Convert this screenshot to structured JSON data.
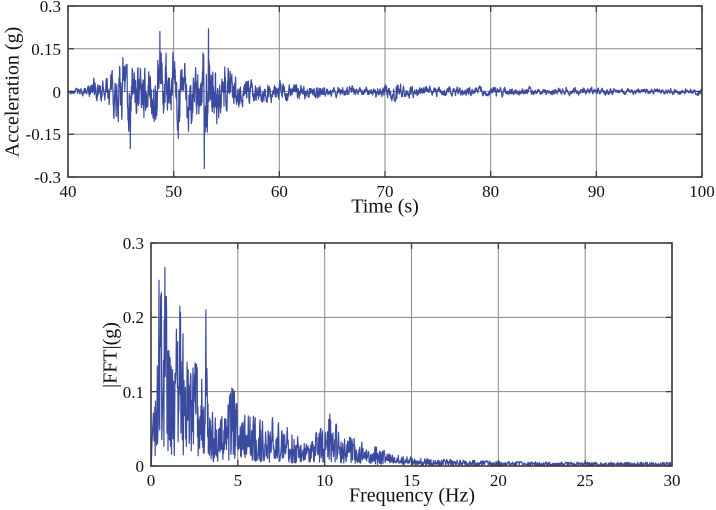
{
  "page": {
    "background_color": "#ffffff",
    "text_color": "#111111"
  },
  "chart_data": [
    {
      "id": "acceleration-time-history",
      "type": "line",
      "title": "",
      "xlabel": "Time (s)",
      "ylabel": "Acceleration (g)",
      "xlim": [
        40,
        100
      ],
      "ylim": [
        -0.3,
        0.3
      ],
      "xticks": [
        40,
        50,
        60,
        70,
        80,
        90,
        100
      ],
      "xtick_labels": [
        "40",
        "50",
        "60",
        "70",
        "80",
        "90",
        "100"
      ],
      "yticks": [
        0.3,
        0.15,
        0,
        -0.15,
        -0.3
      ],
      "ytick_labels": [
        "0.3",
        "0.15",
        "0",
        "-0.15",
        "-0.3"
      ],
      "grid": true,
      "legend": "none",
      "line_color": "#3a4a9f",
      "grid_color": "#8a8a8a",
      "axis_color": "#3a3a3a",
      "series": [
        {
          "name": "acceleration",
          "kind": "stochastic-waveform",
          "units": "g",
          "sample_step": 0.02,
          "envelope_keypoints": {
            "t": [
              40,
              41.5,
              42.5,
              43.5,
              44.5,
              45.5,
              46.2,
              47,
              48,
              48.8,
              49.5,
              50.3,
              51,
              51.8,
              52.5,
              53.0,
              53.5,
              54.2,
              55,
              56,
              57,
              58,
              59,
              60,
              61,
              62,
              64,
              66,
              68,
              70,
              71,
              71.8,
              73,
              75,
              78,
              80,
              85,
              90,
              95,
              100
            ],
            "amp": [
              0.008,
              0.02,
              0.055,
              0.06,
              0.1,
              0.17,
              0.13,
              0.12,
              0.14,
              0.21,
              0.13,
              0.16,
              0.12,
              0.18,
              0.14,
              0.26,
              0.22,
              0.12,
              0.14,
              0.07,
              0.06,
              0.05,
              0.04,
              0.045,
              0.035,
              0.03,
              0.03,
              0.025,
              0.02,
              0.025,
              0.045,
              0.025,
              0.022,
              0.02,
              0.018,
              0.02,
              0.015,
              0.015,
              0.012,
              0.012
            ]
          },
          "notable_peaks": [
            {
              "t": 45.9,
              "value": -0.2
            },
            {
              "t": 48.7,
              "value": 0.21
            },
            {
              "t": 52.9,
              "value": -0.27
            },
            {
              "t": 53.3,
              "value": 0.22
            }
          ],
          "dominant_band_hz": [
            0.5,
            5
          ]
        }
      ]
    },
    {
      "id": "fft-spectrum",
      "type": "line",
      "title": "",
      "xlabel": "Frequency (Hz)",
      "ylabel": "|FFT|(g)",
      "xlim": [
        0,
        30
      ],
      "ylim": [
        0,
        0.3
      ],
      "xticks": [
        0,
        5,
        10,
        15,
        20,
        25,
        30
      ],
      "xtick_labels": [
        "0",
        "5",
        "10",
        "15",
        "20",
        "25",
        "30"
      ],
      "yticks": [
        0.3,
        0.2,
        0.1,
        0
      ],
      "ytick_labels": [
        "0.3",
        "0.2",
        "0.1",
        "0"
      ],
      "grid": true,
      "legend": "none",
      "line_color": "#3a4a9f",
      "grid_color": "#8a8a8a",
      "axis_color": "#3a3a3a",
      "series": [
        {
          "name": "fft-magnitude",
          "kind": "spectrum",
          "units": "g",
          "sample_step": 0.02,
          "envelope_keypoints": {
            "f": [
              0,
              0.2,
              0.35,
              0.5,
              0.65,
              0.8,
              1.0,
              1.15,
              1.3,
              1.5,
              1.65,
              1.8,
              2.0,
              2.15,
              2.3,
              2.5,
              2.7,
              2.9,
              3.05,
              3.15,
              3.3,
              3.6,
              4.0,
              4.3,
              4.65,
              5.0,
              5.4,
              6.0,
              6.5,
              7.0,
              7.5,
              8.0,
              8.5,
              9.0,
              9.5,
              10.0,
              10.3,
              10.7,
              11.2,
              12.0,
              12.5,
              13.0,
              13.5,
              14.0,
              15.0,
              16.0,
              18.0,
              20.0,
              25.0,
              30.0
            ],
            "amp": [
              0.004,
              0.1,
              0.25,
              0.22,
              0.24,
              0.267,
              0.17,
              0.16,
              0.12,
              0.2,
              0.215,
              0.19,
              0.13,
              0.155,
              0.12,
              0.14,
              0.135,
              0.13,
              0.15,
              0.21,
              0.1,
              0.065,
              0.075,
              0.07,
              0.105,
              0.095,
              0.075,
              0.065,
              0.06,
              0.065,
              0.055,
              0.05,
              0.04,
              0.035,
              0.045,
              0.055,
              0.07,
              0.055,
              0.04,
              0.035,
              0.03,
              0.025,
              0.02,
              0.015,
              0.012,
              0.01,
              0.008,
              0.006,
              0.005,
              0.005
            ]
          },
          "notable_peaks": [
            {
              "f": 0.45,
              "value": 0.25
            },
            {
              "f": 0.8,
              "value": 0.267
            },
            {
              "f": 1.65,
              "value": 0.215
            },
            {
              "f": 3.15,
              "value": 0.21
            },
            {
              "f": 4.65,
              "value": 0.105
            },
            {
              "f": 10.3,
              "value": 0.07
            }
          ]
        }
      ]
    }
  ]
}
